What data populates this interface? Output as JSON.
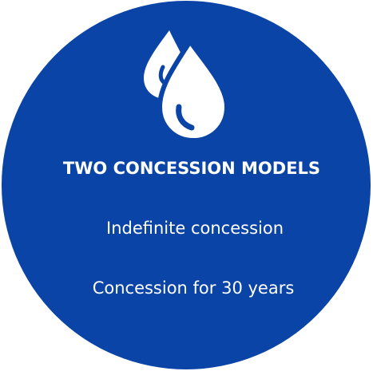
{
  "title": "TWO CONCESSION MODELS",
  "items": [
    "Indefinite concession",
    "Concession for 30 years"
  ]
}
